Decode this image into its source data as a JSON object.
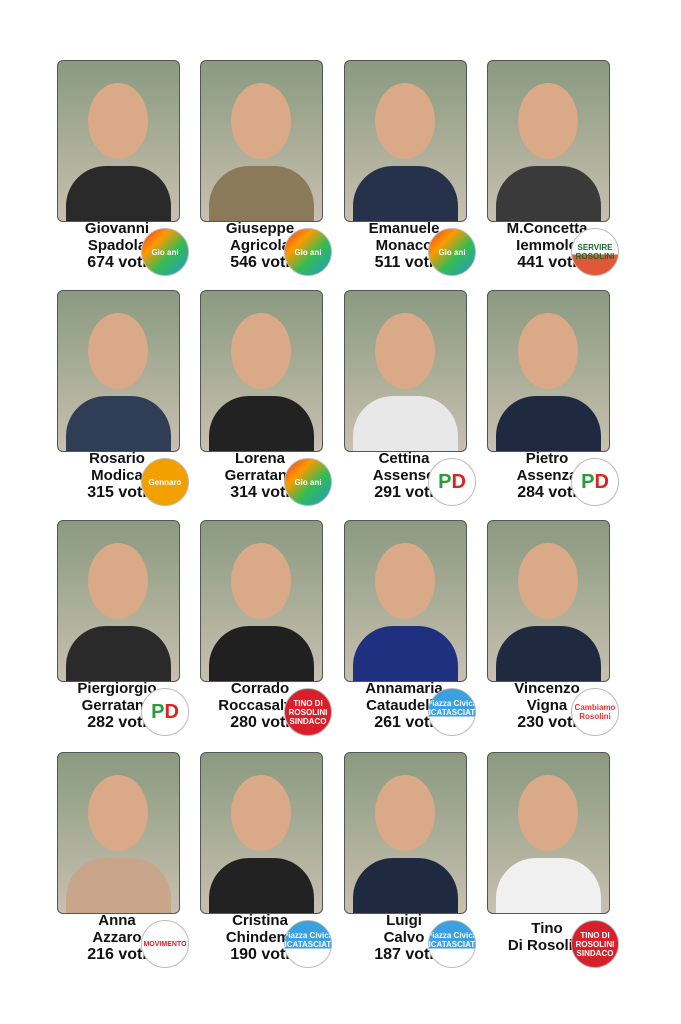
{
  "unit": "voti",
  "candidates": [
    {
      "first": "Giovanni",
      "last": "Spadola",
      "votes": 674,
      "list": "Gio ani",
      "logo": "gio",
      "cloth": "#2a2a2a"
    },
    {
      "first": "Giuseppe",
      "last": "Agricola",
      "votes": 546,
      "list": "Gio ani",
      "logo": "gio",
      "cloth": "#8a7a5a"
    },
    {
      "first": "Emanuele",
      "last": "Monaco",
      "votes": 511,
      "list": "Gio ani",
      "logo": "gio",
      "cloth": "#25324a"
    },
    {
      "first": "M.Concetta",
      "last": "Iemmolo",
      "votes": 441,
      "list": "Servire Rosolini",
      "logo": "serv",
      "cloth": "#3a3a3a"
    },
    {
      "first": "Rosario",
      "last": "Modica",
      "votes": 315,
      "list": "Gennaro",
      "logo": "gen",
      "cloth": "#2f3d55"
    },
    {
      "first": "Lorena",
      "last": "Gerratana",
      "votes": 314,
      "list": "Gio ani",
      "logo": "gio",
      "cloth": "#222"
    },
    {
      "first": "Cettina",
      "last": "Assenso",
      "votes": 291,
      "list": "PD",
      "logo": "pd",
      "cloth": "#e8e8e8"
    },
    {
      "first": "Pietro",
      "last": "Assenza",
      "votes": 284,
      "list": "PD",
      "logo": "pd",
      "cloth": "#1f2a40"
    },
    {
      "first": "Piergiorgio",
      "last": "Gerratana",
      "votes": 282,
      "list": "PD",
      "logo": "pd",
      "cloth": "#2a2a2a"
    },
    {
      "first": "Corrado",
      "last": "Roccasalvo",
      "votes": 280,
      "list": "Tino Di Rosolini Sindaco",
      "logo": "tino",
      "cloth": "#202020"
    },
    {
      "first": "Annamaria",
      "last": "Cataudella",
      "votes": 261,
      "list": "Piazza Civica Incatasciato Sindaco",
      "logo": "piazza",
      "cloth": "#203080"
    },
    {
      "first": "Vincenzo",
      "last": "Vigna",
      "votes": 230,
      "list": "Cambiamo Rosolini",
      "logo": "cambia",
      "cloth": "#1f2a40"
    },
    {
      "first": "Anna",
      "last": "Azzaro",
      "votes": 216,
      "list": "Movimento 5 Stelle",
      "logo": "m5s",
      "cloth": "#c9a58a"
    },
    {
      "first": "Cristina",
      "last": "Chindemi",
      "votes": 190,
      "list": "Piazza Civica Incatasciato Sindaco",
      "logo": "piazza",
      "cloth": "#222"
    },
    {
      "first": "Luigi",
      "last": "Calvo",
      "votes": 187,
      "list": "Piazza Civica Incatasciato Sindaco",
      "logo": "piazza",
      "cloth": "#1f2a40"
    },
    {
      "first": "Tino",
      "last": "Di Rosolini",
      "votes": null,
      "list": "Tino Di Rosolini Sindaco",
      "logo": "tino",
      "cloth": "#f0f0f0"
    }
  ],
  "logo_text": {
    "gio": "Gio ani",
    "serv": "SERVIRE ROSOLINI",
    "gen": "Gennaro",
    "pd": "PD",
    "tino": "TINO DI ROSOLINI SINDACO",
    "piazza": "Piazza Civica INCATASCIATO SINDACO",
    "cambia": "Cambiamo Rosolini",
    "m5s": "MOVIMENTO"
  }
}
